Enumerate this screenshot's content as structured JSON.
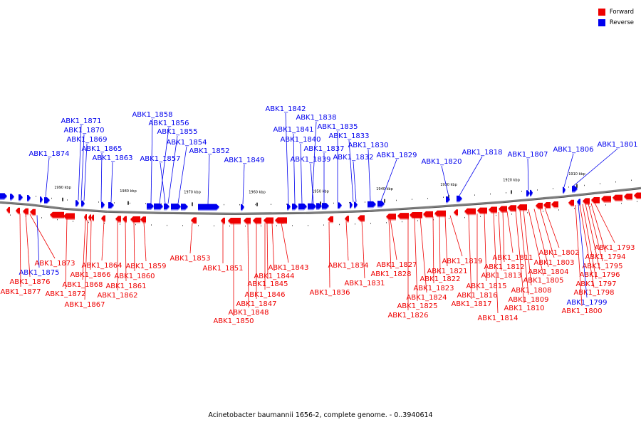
{
  "legend": {
    "forward_label": "Forward",
    "reverse_label": "Reverse",
    "forward_color": "#ee0000",
    "reverse_color": "#0000ee"
  },
  "caption": "Acinetobacter baumannii 1656-2, complete genome. - 0..3940614",
  "ticks": [
    "1990 kbp",
    "1980 kbp",
    "1970 kbp",
    "1960 kbp",
    "1950 kbp",
    "1940 kbp",
    "1930 kbp",
    "1920 kbp",
    "1910 kbp"
  ],
  "top_labels": [
    "ABK1_1874",
    "ABK1_1871",
    "ABK1_1870",
    "ABK1_1869",
    "ABK1_1865",
    "ABK1_1863",
    "ABK1_1858",
    "ABK1_1856",
    "ABK1_1855",
    "ABK1_1857",
    "ABK1_1854",
    "ABK1_1852",
    "ABK1_1849",
    "ABK1_1842",
    "ABK1_1838",
    "ABK1_1841",
    "ABK1_1835",
    "ABK1_1840",
    "ABK1_1833",
    "ABK1_1837",
    "ABK1_1830",
    "ABK1_1839",
    "ABK1_1832",
    "ABK1_1829",
    "ABK1_1820",
    "ABK1_1818",
    "ABK1_1807",
    "ABK1_1806",
    "ABK1_1801"
  ],
  "bottom_labels": [
    "ABK1_1873",
    "ABK1_1875",
    "ABK1_1876",
    "ABK1_1877",
    "ABK1_1872",
    "ABK1_1868",
    "ABK1_1867",
    "ABK1_1864",
    "ABK1_1866",
    "ABK1_1859",
    "ABK1_1860",
    "ABK1_1861",
    "ABK1_1862",
    "ABK1_1853",
    "ABK1_1851",
    "ABK1_1843",
    "ABK1_1844",
    "ABK1_1845",
    "ABK1_1846",
    "ABK1_1847",
    "ABK1_1848",
    "ABK1_1850",
    "ABK1_1834",
    "ABK1_1836",
    "ABK1_1831",
    "ABK1_1827",
    "ABK1_1828",
    "ABK1_1824",
    "ABK1_1825",
    "ABK1_1826",
    "ABK1_1819",
    "ABK1_1821",
    "ABK1_1822",
    "ABK1_1823",
    "ABK1_1811",
    "ABK1_1812",
    "ABK1_1813",
    "ABK1_1815",
    "ABK1_1816",
    "ABK1_1817",
    "ABK1_1814",
    "ABK1_1802",
    "ABK1_1803",
    "ABK1_1804",
    "ABK1_1805",
    "ABK1_1808",
    "ABK1_1809",
    "ABK1_1810",
    "ABK1_1793",
    "ABK1_1794",
    "ABK1_1795",
    "ABK1_1796",
    "ABK1_1797",
    "ABK1_1798",
    "ABK1_1799",
    "ABK1_1800"
  ]
}
